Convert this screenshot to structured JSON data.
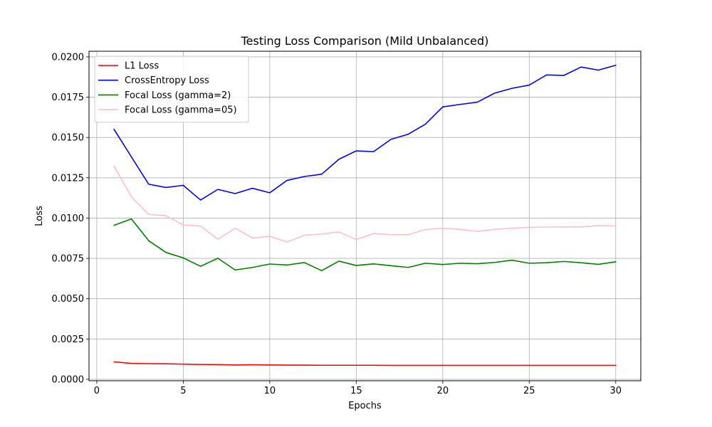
{
  "chart_data": {
    "type": "line",
    "title": "Testing Loss Comparison (Mild Unbalanced)",
    "xlabel": "Epochs",
    "ylabel": "Loss",
    "xlim": [
      -0.45,
      31.45
    ],
    "ylim": [
      -9e-05,
      0.02035
    ],
    "xticks": [
      0,
      5,
      10,
      15,
      20,
      25,
      30
    ],
    "xtick_labels": [
      "0",
      "5",
      "10",
      "15",
      "20",
      "25",
      "30"
    ],
    "yticks": [
      0.0,
      0.0025,
      0.005,
      0.0075,
      0.01,
      0.0125,
      0.015,
      0.0175,
      0.02
    ],
    "ytick_labels": [
      "0.0000",
      "0.0025",
      "0.0050",
      "0.0075",
      "0.0100",
      "0.0125",
      "0.0150",
      "0.0175",
      "0.0200"
    ],
    "grid": true,
    "legend_position": "top-left",
    "x": [
      1,
      2,
      3,
      4,
      5,
      6,
      7,
      8,
      9,
      10,
      11,
      12,
      13,
      14,
      15,
      16,
      17,
      18,
      19,
      20,
      21,
      22,
      23,
      24,
      25,
      26,
      27,
      28,
      29,
      30
    ],
    "series": [
      {
        "name": "L1 Loss",
        "color": "#ff0000",
        "values": [
          0.00108,
          0.00099,
          0.00097,
          0.00096,
          0.00094,
          0.00092,
          0.00091,
          0.00089,
          0.0009,
          0.00089,
          0.00088,
          0.00088,
          0.00087,
          0.00087,
          0.00087,
          0.00087,
          0.00086,
          0.00086,
          0.00086,
          0.00086,
          0.00086,
          0.00086,
          0.00086,
          0.00086,
          0.00086,
          0.00086,
          0.00086,
          0.00086,
          0.00086,
          0.00086
        ]
      },
      {
        "name": "CrossEntropy Loss",
        "color": "#0000ff",
        "values": [
          0.0155,
          0.0138,
          0.0121,
          0.0119,
          0.01203,
          0.01112,
          0.01178,
          0.01152,
          0.01185,
          0.01157,
          0.01234,
          0.01258,
          0.01272,
          0.01365,
          0.01417,
          0.01412,
          0.01488,
          0.0152,
          0.01583,
          0.0169,
          0.01705,
          0.01719,
          0.01775,
          0.01805,
          0.01825,
          0.01888,
          0.01885,
          0.01937,
          0.01918,
          0.01948
        ]
      },
      {
        "name": "Focal Loss (gamma=2)",
        "color": "#008000",
        "values": [
          0.00955,
          0.00995,
          0.0086,
          0.00787,
          0.00753,
          0.00701,
          0.00751,
          0.00678,
          0.00694,
          0.00715,
          0.00709,
          0.00724,
          0.00674,
          0.00733,
          0.00706,
          0.00716,
          0.00705,
          0.00694,
          0.0072,
          0.00712,
          0.0072,
          0.00717,
          0.00725,
          0.00739,
          0.0072,
          0.00723,
          0.00731,
          0.00723,
          0.00713,
          0.00729
        ]
      },
      {
        "name": "Focal Loss (gamma=05)",
        "color": "#ffc0cb",
        "values": [
          0.01322,
          0.01132,
          0.01023,
          0.01015,
          0.00957,
          0.00951,
          0.00869,
          0.00937,
          0.00877,
          0.00887,
          0.00852,
          0.00893,
          0.00901,
          0.00914,
          0.00867,
          0.00904,
          0.00897,
          0.00897,
          0.00929,
          0.00938,
          0.0093,
          0.00917,
          0.0093,
          0.00938,
          0.00942,
          0.00944,
          0.00945,
          0.00946,
          0.00953,
          0.00951
        ]
      }
    ]
  }
}
